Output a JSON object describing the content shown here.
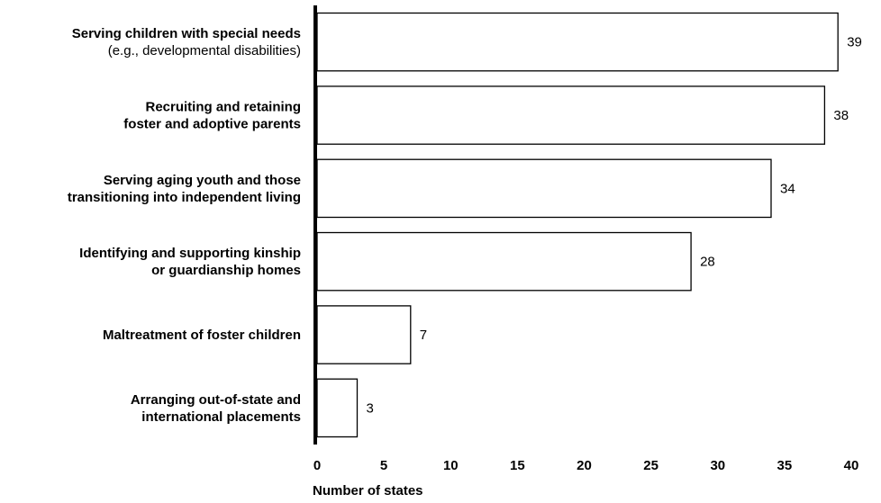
{
  "chart_data": {
    "type": "bar",
    "orientation": "horizontal",
    "categories": [
      [
        "Serving children with special needs",
        "(e.g., developmental disabilities)"
      ],
      [
        "Recruiting and retaining",
        "foster and adoptive parents"
      ],
      [
        "Serving aging youth and those",
        "transitioning into independent living"
      ],
      [
        "Identifying and supporting kinship",
        "or guardianship homes"
      ],
      [
        "Maltreatment of foster children"
      ],
      [
        "Arranging out-of-state and",
        "international placements"
      ]
    ],
    "normal_weight_lines": [
      [
        1
      ]
    ],
    "values": [
      39,
      38,
      34,
      28,
      7,
      3
    ],
    "xlabel": "Number of states",
    "xlim": [
      0,
      40
    ],
    "xticks": [
      0,
      5,
      10,
      15,
      20,
      25,
      30,
      35,
      40
    ],
    "grid": false,
    "colors": {
      "bar_fill": "#ffffff",
      "bar_stroke": "#000000"
    }
  }
}
